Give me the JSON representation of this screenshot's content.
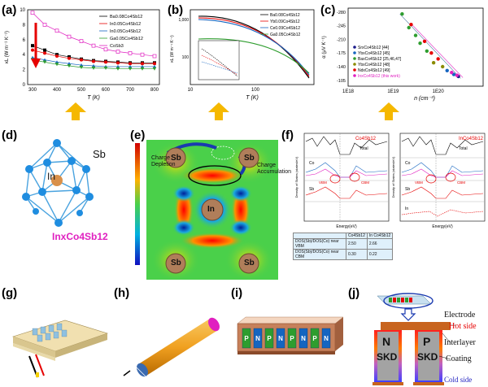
{
  "panel_labels": [
    "(a)",
    "(b)",
    "(c)",
    "(d)",
    "(e)",
    "(f)",
    "(g)",
    "(h)",
    "(i)",
    "(j)"
  ],
  "colors": {
    "arrow": "#f5b800",
    "red": "#e60000",
    "blue": "#1565c0",
    "magenta": "#e020c0",
    "green": "#2e9d2e",
    "black": "#000000"
  },
  "chart_data": [
    {
      "type": "line",
      "panel": "(a)",
      "xlabel": "T (K)",
      "ylabel": "κL (W m⁻¹ K⁻¹)",
      "xlim": [
        280,
        820
      ],
      "ylim": [
        0,
        10
      ],
      "x_ticks": [
        "300",
        "400",
        "500",
        "600",
        "700",
        "800"
      ],
      "y_ticks": [
        "0",
        "2",
        "4",
        "6",
        "8",
        "10"
      ],
      "legend_position": "top-right",
      "series": [
        {
          "name": "Ba0.08Co4Sb12",
          "color": "#000000",
          "x": [
            300,
            350,
            400,
            450,
            500,
            550,
            600,
            650,
            700,
            750,
            800
          ],
          "y": [
            5.2,
            4.6,
            4.0,
            3.7,
            3.4,
            3.2,
            3.1,
            3.0,
            2.9,
            2.9,
            2.9
          ]
        },
        {
          "name": "In0.05Co4Sb12",
          "color": "#e60000",
          "x": [
            300,
            350,
            400,
            450,
            500,
            550,
            600,
            650,
            700,
            750,
            800
          ],
          "y": [
            4.6,
            4.2,
            3.8,
            3.5,
            3.3,
            3.1,
            3.0,
            2.9,
            2.8,
            2.8,
            2.8
          ]
        },
        {
          "name": "In0.05Co4Sb12",
          "color": "#1565c0",
          "x": [
            300,
            350,
            400,
            450,
            500,
            550,
            600,
            650,
            700,
            750,
            800
          ],
          "y": [
            3.6,
            3.3,
            3.0,
            2.8,
            2.6,
            2.5,
            2.4,
            2.4,
            2.4,
            2.4,
            2.4
          ]
        },
        {
          "name": "Ga0.05Co4Sb12",
          "color": "#2e9d2e",
          "x": [
            300,
            350,
            400,
            450,
            500,
            550,
            600,
            650,
            700,
            750,
            800
          ],
          "y": [
            3.3,
            3.0,
            2.7,
            2.5,
            2.3,
            2.2,
            2.2,
            2.1,
            2.1,
            2.1,
            2.1
          ]
        },
        {
          "name": "CoSb3",
          "color": "#e020c0",
          "x": [
            300,
            350,
            400,
            450,
            500,
            550,
            600,
            650,
            700,
            750,
            800
          ],
          "y": [
            9.6,
            8.0,
            7.2,
            6.4,
            5.8,
            5.2,
            4.7,
            4.4,
            4.2,
            4.0,
            3.8
          ]
        }
      ]
    },
    {
      "type": "line",
      "panel": "(b)",
      "xlabel": "T (K)",
      "ylabel": "κL (W m⁻¹ K⁻¹)",
      "xscale": "log",
      "x_ticks": [
        "10",
        "100"
      ],
      "y_ticks": [
        "1,000",
        "100"
      ],
      "legend_position": "top-right",
      "series": [
        {
          "name": "Ba0.08Co4Sb12",
          "color": "#000000"
        },
        {
          "name": "Yb0.09Co4Sb12",
          "color": "#e60000"
        },
        {
          "name": "Ce0.09Co4Sb12",
          "color": "#1565c0"
        },
        {
          "name": "Ga0.05Co4Sb12",
          "color": "#2e9d2e"
        }
      ]
    },
    {
      "type": "scatter",
      "panel": "(c)",
      "xlabel": "n (cm⁻³)",
      "ylabel": "α (μV K⁻¹)",
      "xscale": "log",
      "xlim": [
        "1E18",
        "1E21"
      ],
      "ylim": [
        -90,
        -290
      ],
      "x_ticks": [
        "1E18",
        "1E19",
        "1E20"
      ],
      "y_ticks": [
        "-280",
        "-245",
        "-210",
        "-175",
        "-140",
        "-105"
      ],
      "legend_position": "top-left",
      "series": [
        {
          "name": "SrxCo4Sb12 [44]",
          "color": "#1a1a8a"
        },
        {
          "name": "YbxCo4Sb12 [45]",
          "color": "#1565c0"
        },
        {
          "name": "BaxCo4Sb12 [25,46,47]",
          "color": "#2e9d2e"
        },
        {
          "name": "YbxCo4Sb12 [48]",
          "color": "#8a8a00"
        },
        {
          "name": "NdxCo4Sb12 [49]",
          "color": "#e60000"
        },
        {
          "name": "InxCo4Sb12 (this work)",
          "color": "#e020c0"
        }
      ]
    }
  ],
  "panel_a": {
    "legend": [
      "Ba0.08Co4Sb12",
      "In0.05Co4Sb12",
      "In0.05Co4Sb12",
      "Ga0.05Co4Sb12",
      "CoSb3"
    ]
  },
  "panel_b": {
    "legend": [
      "Ba0.08Co4Sb12",
      "Yb0.09Co4Sb12",
      "Ce0.09Co4Sb12",
      "Ga0.05Co4Sb12"
    ]
  },
  "panel_c": {
    "legend": [
      "SrxCo4Sb12 [44]",
      "YbxCo4Sb12 [45]",
      "BaxCo4Sb12 [25,46,47]",
      "YbxCo4Sb12 [48]",
      "NdxCo4Sb12 [49]",
      "InxCo4Sb12 (this work)"
    ]
  },
  "panel_d": {
    "atom_sb": "Sb",
    "atom_in": "In",
    "formula": "InxCo4Sb12"
  },
  "panel_e": {
    "sb": "Sb",
    "in": "In",
    "depletion": "Charge Depletion",
    "accumulation": "Charge Accumulation"
  },
  "panel_f": {
    "left_title": "Co4Sb12",
    "right_title": "InCo4Sb12",
    "total": "Total",
    "ylabel_left": "Density of States (states/eV)",
    "ylabel_right": "Density of States (states/eV)",
    "xlabel": "Energy(eV)",
    "co": "Co",
    "sb": "Sb",
    "in": "In",
    "vbm": "VBM",
    "cbm": "CBM",
    "d": "d",
    "p": "p",
    "s": "s",
    "table_header": [
      "",
      "Co4Sb12",
      "In Co4Sb12"
    ],
    "table_rows": [
      [
        "DOS(Sb)/DOS(Co) near VBM",
        "2.50",
        "2.66"
      ],
      [
        "DOS(Sb)/DOS(Co) near CBM",
        "0.30",
        "0.22"
      ]
    ]
  },
  "panel_i": {
    "legs": [
      "P",
      "N",
      "P",
      "N",
      "P",
      "N",
      "P",
      "N"
    ]
  },
  "panel_j": {
    "electrode": "Electrode",
    "hot_side": "Hot side",
    "interlayer": "Interlayer",
    "coating": "Coating",
    "cold_side": "Cold side",
    "n_leg": "N",
    "p_leg": "P",
    "skd_left": "SKD",
    "skd_right": "SKD"
  }
}
